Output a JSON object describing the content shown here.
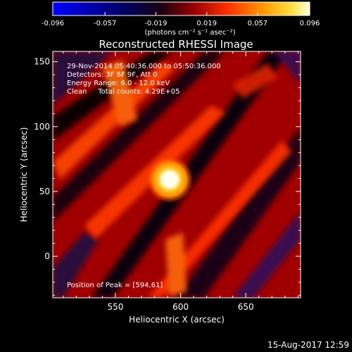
{
  "colorbar": {
    "tick_labels": [
      "-0.096",
      "-0.057",
      "-0.019",
      "0.019",
      "0.057",
      "0.096"
    ],
    "units_label": "(photons cm⁻² s⁻¹ asec⁻²)"
  },
  "plot": {
    "title": "Reconstructed RHESSI Image",
    "annotations": [
      "29-Nov-2014 05:40:36.000 to 05:50:36.000",
      "Detectors: 3F 6F 9F, Att 0",
      "Energy Range: 6.0 - 12.0 keV",
      "Clean     Total counts: 4.29E+05"
    ],
    "peak_label": "Position of Peak = [594,61]"
  },
  "footer": {
    "date": "15-Aug-2017 12:59"
  },
  "chart_data": {
    "type": "heatmap",
    "title": "Reconstructed RHESSI Image",
    "xlabel": "Heliocentric X (arcsec)",
    "ylabel": "Heliocentric Y (arcsec)",
    "xlim": [
      502,
      692
    ],
    "ylim": [
      -32,
      158
    ],
    "x_ticks": [
      550,
      600,
      650
    ],
    "y_ticks": [
      0,
      50,
      100,
      150
    ],
    "colorbar_range": [
      -0.096,
      0.096
    ],
    "peak": {
      "x": 594,
      "y": 61
    },
    "colormap": [
      "#0000ff",
      "#00008b",
      "#000000",
      "#5c2a8a",
      "#b40000",
      "#ff2800",
      "#ff8c00",
      "#ffd200",
      "#ffffcc"
    ]
  }
}
